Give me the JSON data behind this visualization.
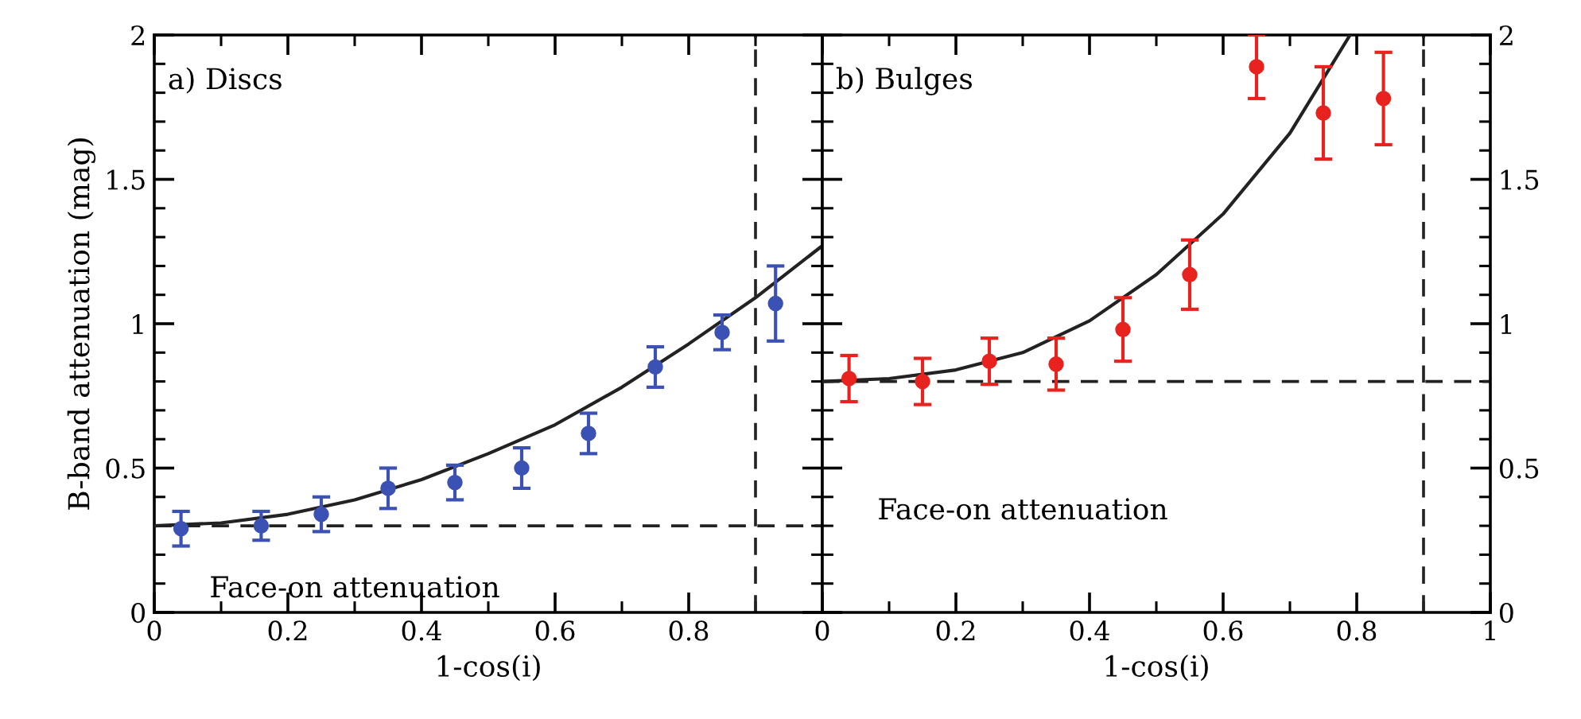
{
  "chart_data": [
    {
      "type": "scatter",
      "title": "a) Discs",
      "xlabel": "1-cos(i)",
      "ylabel": "B-band attenuation (mag)",
      "xlim": [
        0,
        1
      ],
      "ylim": [
        0,
        2
      ],
      "xticks": [
        0,
        0.2,
        0.4,
        0.6,
        0.8,
        {
          "value": 1,
          "label": null
        }
      ],
      "yticks": [
        0,
        0.5,
        1,
        1.5,
        2
      ],
      "grid": false,
      "legend": false,
      "x": [
        0.04,
        0.16,
        0.25,
        0.35,
        0.45,
        0.55,
        0.65,
        0.75,
        0.85,
        0.93
      ],
      "series": [
        {
          "marker": "circle",
          "color": "#3b52b4",
          "values": [
            0.29,
            0.3,
            0.34,
            0.43,
            0.45,
            0.5,
            0.62,
            0.85,
            0.97,
            1.07
          ],
          "errors": [
            0.06,
            0.05,
            0.06,
            0.07,
            0.06,
            0.07,
            0.07,
            0.07,
            0.06,
            0.13
          ]
        },
        {
          "type": "line",
          "marker": "none",
          "color": "#222222",
          "line_style": "solid",
          "x": [
            0,
            0.1,
            0.2,
            0.3,
            0.4,
            0.5,
            0.6,
            0.7,
            0.8,
            0.9,
            1.0
          ],
          "values": [
            0.3,
            0.31,
            0.34,
            0.39,
            0.46,
            0.55,
            0.65,
            0.78,
            0.93,
            1.09,
            1.27
          ]
        }
      ],
      "ref_lines": [
        {
          "axis": "y",
          "value": 0.3,
          "label": "Face-on attenuation",
          "line_style": "dashed",
          "color": "#222222"
        },
        {
          "axis": "x",
          "value": 0.9,
          "line_style": "dashed",
          "color": "#222222"
        }
      ]
    },
    {
      "type": "scatter",
      "title": "b) Bulges",
      "xlabel": "1-cos(i)",
      "xlim": [
        0,
        1
      ],
      "ylim": [
        0,
        2
      ],
      "xticks": [
        0,
        0.2,
        0.4,
        0.6,
        0.8,
        1
      ],
      "yticks": [
        0,
        0.5,
        1,
        1.5,
        2
      ],
      "grid": false,
      "legend": false,
      "x": [
        0.04,
        0.15,
        0.25,
        0.35,
        0.45,
        0.55,
        0.65,
        0.75,
        0.84
      ],
      "series": [
        {
          "marker": "circle",
          "color": "#e8221e",
          "values": [
            0.81,
            0.8,
            0.87,
            0.86,
            0.98,
            1.17,
            1.89,
            1.73,
            1.78
          ],
          "errors": [
            0.08,
            0.08,
            0.08,
            0.09,
            0.11,
            0.12,
            0.11,
            0.16,
            0.16
          ]
        },
        {
          "type": "line",
          "marker": "none",
          "color": "#222222",
          "line_style": "solid",
          "x": [
            0,
            0.1,
            0.2,
            0.3,
            0.4,
            0.5,
            0.6,
            0.7,
            0.79
          ],
          "values": [
            0.8,
            0.81,
            0.84,
            0.9,
            1.01,
            1.17,
            1.38,
            1.66,
            2.0
          ]
        }
      ],
      "ref_lines": [
        {
          "axis": "y",
          "value": 0.8,
          "label": "Face-on attenuation",
          "line_style": "dashed",
          "color": "#222222"
        },
        {
          "axis": "x",
          "value": 0.9,
          "line_style": "dashed",
          "color": "#222222"
        }
      ]
    }
  ]
}
